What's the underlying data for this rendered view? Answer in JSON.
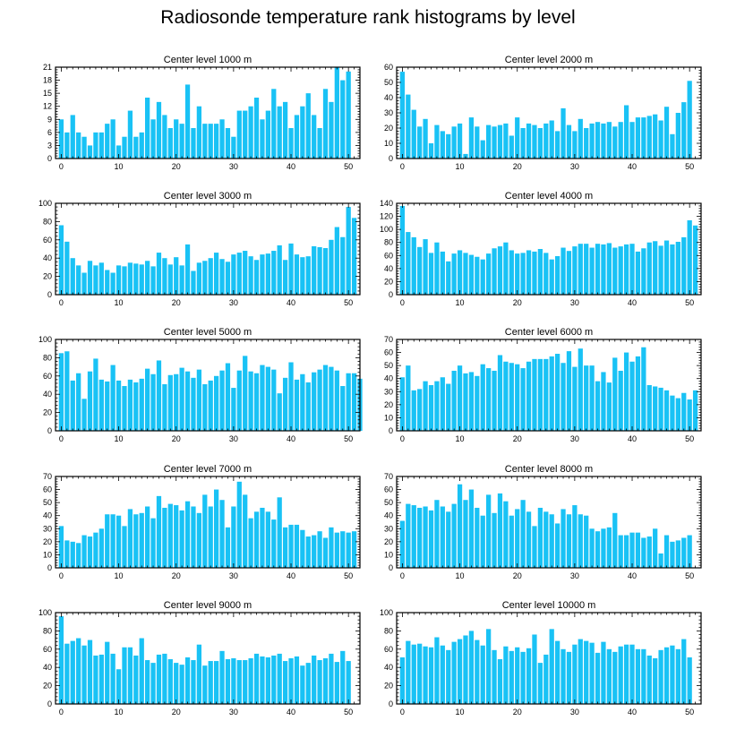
{
  "figure": {
    "title": "Radiosonde temperature rank histograms by level",
    "bar_color": "#19c2f5",
    "axis_color": "#000000",
    "background": "#ffffff"
  },
  "chart_data": [
    {
      "type": "bar",
      "title": "Center level 1000 m",
      "xlim": [
        -1,
        52
      ],
      "ylim": [
        0,
        21
      ],
      "xticks": [
        0,
        10,
        20,
        30,
        40,
        50
      ],
      "yticks": [
        0,
        3,
        6,
        9,
        12,
        15,
        18,
        21
      ],
      "values": [
        9,
        6,
        10,
        6,
        5,
        3,
        6,
        6,
        8,
        9,
        3,
        5,
        11,
        5,
        6,
        14,
        9,
        13,
        10,
        7,
        9,
        8,
        17,
        7,
        12,
        8,
        8,
        8,
        9,
        7,
        5,
        11,
        11,
        12,
        14,
        9,
        11,
        16,
        12,
        13,
        7,
        10,
        12,
        15,
        10,
        7,
        16,
        13,
        21,
        18,
        20
      ]
    },
    {
      "type": "bar",
      "title": "Center level 2000 m",
      "xlim": [
        -1,
        52
      ],
      "ylim": [
        0,
        60
      ],
      "xticks": [
        0,
        10,
        20,
        30,
        40,
        50
      ],
      "yticks": [
        0,
        10,
        20,
        30,
        40,
        50,
        60
      ],
      "values": [
        57,
        42,
        32,
        21,
        26,
        10,
        22,
        18,
        16,
        21,
        23,
        3,
        27,
        21,
        12,
        22,
        21,
        22,
        23,
        15,
        27,
        20,
        23,
        22,
        20,
        23,
        25,
        18,
        33,
        22,
        18,
        26,
        20,
        23,
        24,
        23,
        24,
        21,
        24,
        35,
        24,
        27,
        27,
        28,
        29,
        25,
        34,
        16,
        30,
        37,
        51
      ]
    },
    {
      "type": "bar",
      "title": "Center level 3000 m",
      "xlim": [
        -1,
        52
      ],
      "ylim": [
        0,
        100
      ],
      "xticks": [
        0,
        10,
        20,
        30,
        40,
        50
      ],
      "yticks": [
        0,
        20,
        40,
        60,
        80,
        100
      ],
      "values": [
        76,
        58,
        40,
        32,
        24,
        37,
        32,
        35,
        27,
        24,
        32,
        31,
        35,
        34,
        33,
        37,
        31,
        46,
        40,
        33,
        41,
        32,
        55,
        26,
        35,
        37,
        40,
        46,
        39,
        36,
        44,
        46,
        48,
        42,
        38,
        44,
        45,
        48,
        54,
        38,
        56,
        44,
        41,
        42,
        53,
        52,
        51,
        60,
        74,
        63,
        96,
        84
      ]
    },
    {
      "type": "bar",
      "title": "Center level 4000 m",
      "xlim": [
        -1,
        52
      ],
      "ylim": [
        0,
        140
      ],
      "xticks": [
        0,
        10,
        20,
        30,
        40,
        50
      ],
      "yticks": [
        0,
        20,
        40,
        60,
        80,
        100,
        120,
        140
      ],
      "values": [
        136,
        96,
        88,
        73,
        85,
        64,
        80,
        66,
        51,
        63,
        68,
        64,
        61,
        58,
        54,
        63,
        71,
        74,
        80,
        68,
        63,
        64,
        68,
        66,
        70,
        64,
        54,
        59,
        72,
        67,
        74,
        78,
        78,
        72,
        78,
        77,
        79,
        72,
        74,
        77,
        78,
        66,
        71,
        80,
        82,
        75,
        83,
        77,
        81,
        88,
        114,
        106
      ]
    },
    {
      "type": "bar",
      "title": "Center level 5000 m",
      "xlim": [
        -1,
        52
      ],
      "ylim": [
        0,
        100
      ],
      "xticks": [
        0,
        10,
        20,
        30,
        40,
        50
      ],
      "yticks": [
        0,
        20,
        40,
        60,
        80,
        100
      ],
      "values": [
        85,
        87,
        55,
        63,
        35,
        65,
        79,
        56,
        54,
        72,
        55,
        49,
        56,
        53,
        57,
        68,
        62,
        77,
        51,
        61,
        62,
        69,
        65,
        58,
        67,
        51,
        55,
        60,
        66,
        74,
        47,
        66,
        82,
        65,
        63,
        72,
        70,
        67,
        41,
        58,
        75,
        56,
        62,
        53,
        64,
        67,
        72,
        70,
        66,
        49,
        63,
        63,
        57
      ]
    },
    {
      "type": "bar",
      "title": "Center level 6000 m",
      "xlim": [
        -1,
        52
      ],
      "ylim": [
        0,
        70
      ],
      "xticks": [
        0,
        10,
        20,
        30,
        40,
        50
      ],
      "yticks": [
        0,
        10,
        20,
        30,
        40,
        50,
        60,
        70
      ],
      "values": [
        41,
        50,
        31,
        32,
        38,
        35,
        38,
        41,
        36,
        46,
        50,
        44,
        45,
        42,
        51,
        48,
        46,
        58,
        53,
        52,
        51,
        48,
        53,
        55,
        55,
        55,
        57,
        59,
        52,
        61,
        49,
        63,
        50,
        50,
        38,
        45,
        37,
        56,
        46,
        60,
        53,
        57,
        64,
        35,
        34,
        33,
        31,
        27,
        25,
        29,
        24,
        31
      ]
    },
    {
      "type": "bar",
      "title": "Center level 7000 m",
      "xlim": [
        -1,
        52
      ],
      "ylim": [
        0,
        70
      ],
      "xticks": [
        0,
        10,
        20,
        30,
        40,
        50
      ],
      "yticks": [
        0,
        10,
        20,
        30,
        40,
        50,
        60,
        70
      ],
      "values": [
        32,
        21,
        20,
        19,
        25,
        24,
        27,
        30,
        41,
        41,
        40,
        32,
        45,
        41,
        42,
        47,
        38,
        55,
        46,
        49,
        48,
        44,
        51,
        47,
        42,
        56,
        47,
        60,
        52,
        31,
        47,
        66,
        56,
        38,
        43,
        46,
        43,
        37,
        54,
        31,
        33,
        33,
        29,
        24,
        25,
        28,
        23,
        31,
        27,
        28,
        27,
        28
      ]
    },
    {
      "type": "bar",
      "title": "Center level 8000 m",
      "xlim": [
        -1,
        52
      ],
      "ylim": [
        0,
        70
      ],
      "xticks": [
        0,
        10,
        20,
        30,
        40,
        50
      ],
      "yticks": [
        0,
        10,
        20,
        30,
        40,
        50,
        60,
        70
      ],
      "values": [
        36,
        49,
        48,
        46,
        47,
        44,
        52,
        47,
        43,
        49,
        64,
        52,
        60,
        46,
        40,
        56,
        42,
        57,
        51,
        40,
        45,
        52,
        43,
        32,
        46,
        43,
        41,
        34,
        45,
        41,
        48,
        41,
        40,
        30,
        28,
        30,
        31,
        42,
        25,
        25,
        27,
        27,
        23,
        24,
        30,
        11,
        25,
        20,
        21,
        23,
        25
      ]
    },
    {
      "type": "bar",
      "title": "Center level 9000 m",
      "xlim": [
        -1,
        52
      ],
      "ylim": [
        0,
        100
      ],
      "xticks": [
        0,
        10,
        20,
        30,
        40,
        50
      ],
      "yticks": [
        0,
        20,
        40,
        60,
        80,
        100
      ],
      "values": [
        96,
        66,
        69,
        72,
        64,
        70,
        53,
        54,
        68,
        55,
        38,
        62,
        62,
        53,
        72,
        48,
        45,
        54,
        55,
        49,
        45,
        43,
        51,
        48,
        65,
        42,
        47,
        47,
        58,
        49,
        50,
        48,
        48,
        50,
        55,
        52,
        51,
        53,
        55,
        47,
        50,
        52,
        42,
        45,
        53,
        48,
        50,
        55,
        46,
        58,
        47
      ]
    },
    {
      "type": "bar",
      "title": "Center level 10000 m",
      "xlim": [
        -1,
        52
      ],
      "ylim": [
        0,
        100
      ],
      "xticks": [
        0,
        10,
        20,
        30,
        40,
        50
      ],
      "yticks": [
        0,
        20,
        40,
        60,
        80,
        100
      ],
      "values": [
        51,
        69,
        65,
        66,
        63,
        62,
        73,
        64,
        59,
        68,
        71,
        75,
        80,
        70,
        64,
        82,
        59,
        49,
        63,
        58,
        62,
        57,
        61,
        76,
        45,
        54,
        82,
        69,
        60,
        57,
        65,
        71,
        69,
        67,
        56,
        68,
        60,
        57,
        63,
        65,
        65,
        60,
        60,
        53,
        50,
        59,
        62,
        64,
        60,
        71,
        51
      ]
    }
  ]
}
